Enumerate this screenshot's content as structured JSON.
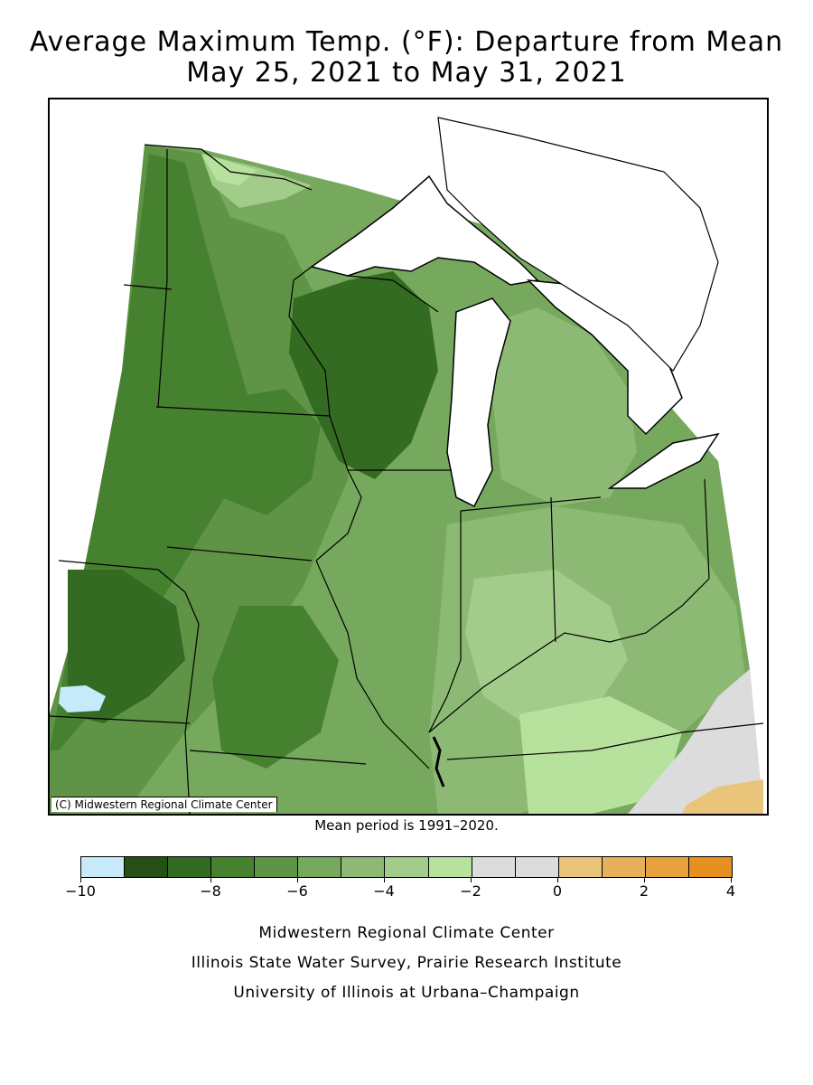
{
  "title_line1": "Average Maximum Temp. (°F): Departure from Mean",
  "title_line2": "May 25, 2021 to May 31, 2021",
  "map_credit": "(C) Midwestern Regional Climate Center",
  "mean_period": "Mean period is 1991–2020.",
  "legend": {
    "colors": [
      "#c6eafa",
      "#244f16",
      "#336b23",
      "#46812f",
      "#5f9446",
      "#76a95d",
      "#8cba74",
      "#a2cc89",
      "#b7e29e",
      "#dcdcdc",
      "#dcdcdc",
      "#e8c57a",
      "#e6b15a",
      "#e7a23d",
      "#e8901f"
    ],
    "tick_labels": [
      "−10",
      "−8",
      "−6",
      "−4",
      "−2",
      "0",
      "2",
      "4"
    ]
  },
  "footer": {
    "line1": "Midwestern Regional Climate Center",
    "line2": "Illinois State Water Survey, Prairie Research Institute",
    "line3": "University of Illinois at Urbana–Champaign"
  }
}
